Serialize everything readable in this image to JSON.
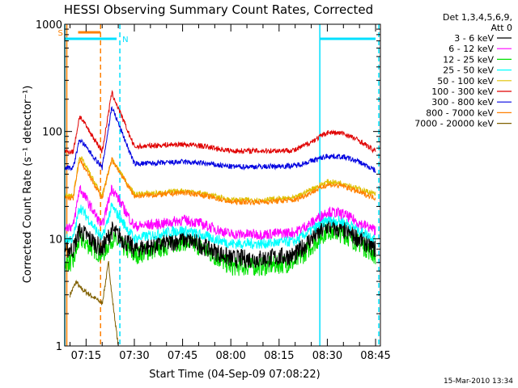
{
  "chart_data": {
    "type": "line",
    "title": "HESSI Observing Summary Count Rates, Corrected",
    "xlabel": "Start Time (04-Sep-09 07:08:22)",
    "ylabel": "Corrected Count Rate (s⁻¹ detector⁻¹)",
    "y_scale": "log",
    "ylim": [
      1,
      1000
    ],
    "xlim": [
      "07:08:22",
      "08:46:30"
    ],
    "x_ticks": [
      "07:15",
      "07:30",
      "07:45",
      "08:00",
      "08:15",
      "08:30",
      "08:45"
    ],
    "y_ticks": [
      "1",
      "10",
      "100",
      "1000"
    ],
    "footer": "15-Mar-2010 13:34",
    "legend": {
      "placement": "right",
      "header": [
        "Det 1,3,4,5,6,9,",
        "Att 0"
      ],
      "entries": [
        {
          "label": "3 - 6 keV",
          "color": "#000000"
        },
        {
          "label": "6 - 12 keV",
          "color": "#ff00ff"
        },
        {
          "label": "12 - 25 keV",
          "color": "#00e000"
        },
        {
          "label": "25 - 50 keV",
          "color": "#00ffff"
        },
        {
          "label": "50 - 100 keV",
          "color": "#e0c000"
        },
        {
          "label": "100 - 300 keV",
          "color": "#e00000"
        },
        {
          "label": "300 - 800 keV",
          "color": "#0000e0"
        },
        {
          "label": "800 - 7000 keV",
          "color": "#ff8000"
        },
        {
          "label": "7000 - 20000 keV",
          "color": "#806000"
        }
      ]
    },
    "flags": [
      {
        "label": "S",
        "color": "#ff8000",
        "start": "07:09:00",
        "end": "07:19:30"
      },
      {
        "label": "N",
        "color": "#00e0ff",
        "start": "07:08:22",
        "end": "07:25:30"
      },
      {
        "label": "",
        "color": "#00e0ff",
        "start": "08:27:40",
        "end": "08:46:00"
      }
    ],
    "series": [
      {
        "name": "3 - 6 keV",
        "color": "#000000",
        "x": [
          "07:08",
          "07:11",
          "07:13",
          "07:20",
          "07:23",
          "07:30",
          "07:40",
          "07:45",
          "07:50",
          "08:00",
          "08:10",
          "08:20",
          "08:25",
          "08:30",
          "08:35",
          "08:40",
          "08:45"
        ],
        "values": [
          8,
          8,
          12,
          8,
          12,
          8,
          9,
          10,
          9,
          6.5,
          6.5,
          7,
          10,
          13,
          12,
          10,
          8
        ]
      },
      {
        "name": "6 - 12 keV",
        "color": "#ff00ff",
        "x": [
          "07:08",
          "07:11",
          "07:13",
          "07:20",
          "07:23",
          "07:30",
          "07:40",
          "07:45",
          "07:50",
          "08:00",
          "08:10",
          "08:20",
          "08:25",
          "08:30",
          "08:35",
          "08:40",
          "08:45"
        ],
        "values": [
          13,
          13,
          30,
          13,
          30,
          13,
          14,
          15,
          14,
          11,
          11,
          11.5,
          14,
          18,
          17,
          14,
          12
        ]
      },
      {
        "name": "12 - 25 keV",
        "color": "#00e000",
        "x": [
          "07:08",
          "07:11",
          "07:13",
          "07:20",
          "07:23",
          "07:30",
          "07:40",
          "07:45",
          "07:50",
          "08:00",
          "08:10",
          "08:20",
          "08:25",
          "08:30",
          "08:35",
          "08:40",
          "08:45"
        ],
        "values": [
          6,
          6,
          10,
          7,
          10,
          7,
          8.5,
          9.5,
          8.5,
          5.5,
          5.5,
          6,
          8.5,
          12,
          11,
          9,
          7
        ]
      },
      {
        "name": "25 - 50 keV",
        "color": "#00ffff",
        "x": [
          "07:08",
          "07:11",
          "07:13",
          "07:20",
          "07:23",
          "07:30",
          "07:40",
          "07:45",
          "07:50",
          "08:00",
          "08:10",
          "08:20",
          "08:25",
          "08:30",
          "08:35",
          "08:40",
          "08:45"
        ],
        "values": [
          10,
          10,
          20,
          10,
          20,
          10,
          11.5,
          12,
          11,
          9,
          9,
          9.5,
          12,
          15,
          14.5,
          12,
          10
        ]
      },
      {
        "name": "50 - 100 keV",
        "color": "#e0c000",
        "x": [
          "07:08",
          "07:11",
          "07:13",
          "07:20",
          "07:23",
          "07:30",
          "07:40",
          "07:45",
          "07:50",
          "08:00",
          "08:10",
          "08:20",
          "08:25",
          "08:30",
          "08:35",
          "08:40",
          "08:45"
        ],
        "values": [
          25,
          25,
          60,
          25,
          55,
          26,
          27,
          28,
          27,
          23,
          23,
          24,
          29,
          34,
          33,
          29,
          26
        ]
      },
      {
        "name": "100 - 300 keV",
        "color": "#e00000",
        "x": [
          "07:08",
          "07:11",
          "07:13",
          "07:20",
          "07:23",
          "07:30",
          "07:40",
          "07:45",
          "07:50",
          "08:00",
          "08:10",
          "08:20",
          "08:25",
          "08:30",
          "08:35",
          "08:40",
          "08:45"
        ],
        "values": [
          65,
          65,
          140,
          65,
          230,
          72,
          75,
          76,
          74,
          66,
          66,
          67,
          80,
          98,
          96,
          82,
          65
        ]
      },
      {
        "name": "300 - 800 keV",
        "color": "#0000e0",
        "x": [
          "07:08",
          "07:11",
          "07:13",
          "07:20",
          "07:23",
          "07:30",
          "07:40",
          "07:45",
          "07:50",
          "08:00",
          "08:10",
          "08:20",
          "08:25",
          "08:30",
          "08:35",
          "08:40",
          "08:45"
        ],
        "values": [
          46,
          46,
          85,
          46,
          170,
          50,
          51,
          52,
          51,
          47,
          47,
          48,
          53,
          59,
          58,
          52,
          43
        ]
      },
      {
        "name": "800 - 7000 keV",
        "color": "#ff8000",
        "x": [
          "07:08",
          "07:11",
          "07:13",
          "07:20",
          "07:23",
          "07:30",
          "07:40",
          "07:45",
          "07:50",
          "08:00",
          "08:10",
          "08:20",
          "08:25",
          "08:30",
          "08:35",
          "08:40",
          "08:45"
        ],
        "values": [
          24,
          24,
          55,
          24,
          55,
          25,
          26,
          27,
          26,
          22,
          22,
          23,
          27,
          32,
          31,
          27,
          24
        ]
      },
      {
        "name": "7000 - 20000 keV",
        "color": "#806000",
        "x": [
          "07:10",
          "07:12",
          "07:13",
          "07:20",
          "07:22",
          "07:23",
          "07:25"
        ],
        "values": [
          3,
          4,
          3.5,
          2.5,
          6,
          3,
          1
        ]
      }
    ]
  }
}
